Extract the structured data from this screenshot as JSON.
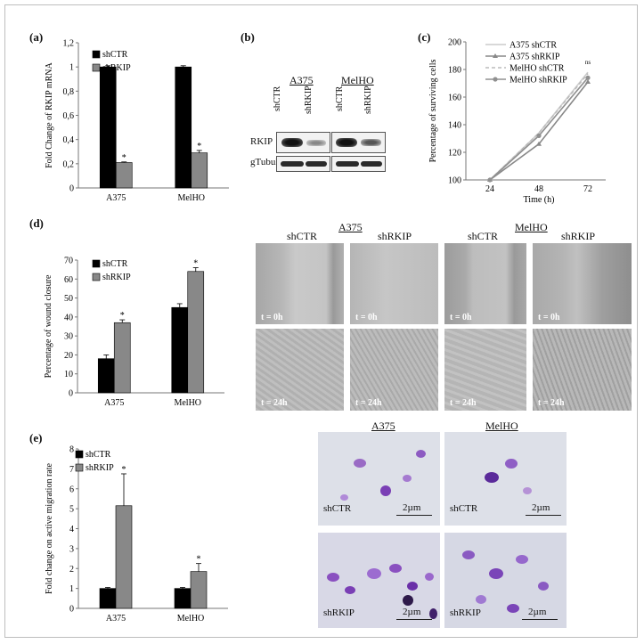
{
  "panels": {
    "a": {
      "label": "(a)"
    },
    "b": {
      "label": "(b)"
    },
    "c": {
      "label": "(c)"
    },
    "d": {
      "label": "(d)"
    },
    "e": {
      "label": "(e)"
    }
  },
  "colors": {
    "shCTR": "#000000",
    "shRKIP": "#888888"
  },
  "chart_data": [
    {
      "id": "a",
      "type": "bar",
      "categories": [
        "A375",
        "MelHO"
      ],
      "series": [
        {
          "name": "shCTR",
          "values": [
            1.0,
            1.0
          ],
          "errors": [
            0.01,
            0.01
          ],
          "sig": [
            "",
            ""
          ]
        },
        {
          "name": "shRKIP",
          "values": [
            0.21,
            0.29
          ],
          "errors": [
            0.005,
            0.02
          ],
          "sig": [
            "*",
            "*"
          ]
        }
      ],
      "ylabel": "Fold Change of RKIP mRNA",
      "ylim": [
        0,
        1.2
      ],
      "yticks": [
        "0",
        "0,2",
        "0,4",
        "0,6",
        "0,8",
        "1",
        "1,2"
      ],
      "legend": "top-left"
    },
    {
      "id": "c",
      "type": "line",
      "x": [
        "24",
        "48",
        "72"
      ],
      "series": [
        {
          "name": "A375 shCTR",
          "values": [
            100,
            134,
            178
          ],
          "color": "#cccccc",
          "marker": "none",
          "dash": ""
        },
        {
          "name": "A375 shRKIP",
          "values": [
            100,
            126,
            171
          ],
          "color": "#888888",
          "marker": "triangle",
          "dash": ""
        },
        {
          "name": "MelHO shCTR",
          "values": [
            100,
            134,
            177
          ],
          "color": "#bbbbbb",
          "marker": "none",
          "dash": "4,3"
        },
        {
          "name": "MelHO shRKIP",
          "values": [
            100,
            132,
            174
          ],
          "color": "#909090",
          "marker": "circle",
          "dash": ""
        }
      ],
      "ylabel": "Percentage of surviving cells",
      "xlabel": "Time (h)",
      "ylim": [
        100,
        200
      ],
      "yticks": [
        "100",
        "120",
        "140",
        "160",
        "180",
        "200"
      ],
      "annotation": "ns",
      "legend": "top-right"
    },
    {
      "id": "d",
      "type": "bar",
      "categories": [
        "A375",
        "MelHO"
      ],
      "series": [
        {
          "name": "shCTR",
          "values": [
            18,
            45
          ],
          "errors": [
            2,
            2
          ],
          "sig": [
            "",
            ""
          ]
        },
        {
          "name": "shRKIP",
          "values": [
            37,
            64
          ],
          "errors": [
            1.5,
            2
          ],
          "sig": [
            "*",
            "*"
          ]
        }
      ],
      "ylabel": "Percentage of wound closure",
      "ylim": [
        0,
        70
      ],
      "yticks": [
        "0",
        "10",
        "20",
        "30",
        "40",
        "50",
        "60",
        "70"
      ],
      "legend": "top-left"
    },
    {
      "id": "e",
      "type": "bar",
      "categories": [
        "A375",
        "MelHO"
      ],
      "series": [
        {
          "name": "shCTR",
          "values": [
            1.0,
            1.0
          ],
          "errors": [
            0.05,
            0.05
          ],
          "sig": [
            "",
            ""
          ]
        },
        {
          "name": "shRKIP",
          "values": [
            5.15,
            1.85
          ],
          "errors": [
            1.6,
            0.4
          ],
          "sig": [
            "*",
            "*"
          ]
        }
      ],
      "ylabel": "Fold change on active migration rate",
      "ylim": [
        0,
        8
      ],
      "yticks": [
        "0",
        "1",
        "2",
        "3",
        "4",
        "5",
        "6",
        "7",
        "8"
      ],
      "legend": "top-left"
    }
  ],
  "blot": {
    "cell_lines": [
      "A375",
      "MelHO"
    ],
    "lanes": [
      "shCTR",
      "shRKIP",
      "shCTR",
      "shRKIP"
    ],
    "rows": [
      "RKIP",
      "gTubulin"
    ]
  },
  "wound": {
    "groups": [
      "A375",
      "MelHO"
    ],
    "columns": [
      "shCTR",
      "shRKIP",
      "shCTR",
      "shRKIP"
    ],
    "time_labels": [
      "t = 0h",
      "t = 24h"
    ]
  },
  "migration": {
    "groups": [
      "A375",
      "MelHO"
    ],
    "row_labels": [
      "shCTR",
      "shRKIP"
    ],
    "scale": "2µm"
  }
}
